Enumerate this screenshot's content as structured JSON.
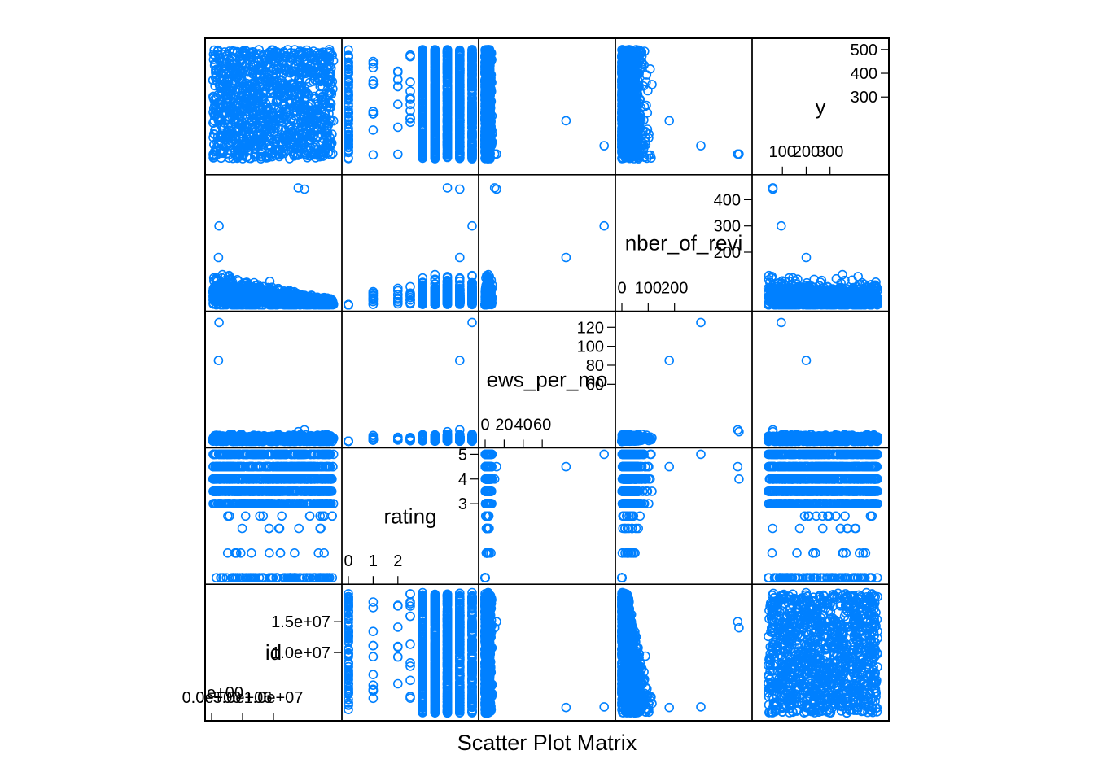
{
  "page": {
    "title": "Scatter Plot Matrix"
  },
  "chart_data": {
    "type": "scatter",
    "subtype": "scatter-plot-matrix",
    "title": "Scatter Plot Matrix",
    "point_color": "#0080ff",
    "marker": "open-circle",
    "grid": false,
    "variables": [
      {
        "name": "id",
        "range": [
          0,
          20000000
        ],
        "ticks_low": [
          "0.0e+00",
          "5.0e+06",
          "1.0e+07"
        ],
        "ticks_low_values": [
          0,
          5000000,
          10000000
        ],
        "ticks_high": [
          "1.0e+07",
          "1.5e+07"
        ],
        "ticks_high_values": [
          10000000,
          15000000
        ],
        "cut_label": "e+00"
      },
      {
        "name": "rating",
        "range": [
          0,
          5
        ],
        "ticks_low": [
          "0",
          "1",
          "2"
        ],
        "ticks_low_values": [
          0,
          1,
          2
        ],
        "ticks_high": [
          "3",
          "4",
          "5"
        ],
        "ticks_high_values": [
          3,
          4,
          5
        ]
      },
      {
        "name": "reviews_per_month",
        "display_name": "ews_per_mo",
        "range": [
          0,
          130
        ],
        "ticks_low": [
          "0",
          "20",
          "40",
          "60"
        ],
        "ticks_low_values": [
          0,
          20,
          40,
          60
        ],
        "ticks_high": [
          "60",
          "80",
          "100",
          "120"
        ],
        "ticks_high_values": [
          60,
          80,
          100,
          120
        ]
      },
      {
        "name": "number_of_reviews",
        "display_name": "nber_of_revi",
        "range": [
          0,
          470
        ],
        "ticks_low": [
          "0",
          "100",
          "200"
        ],
        "ticks_low_values": [
          0,
          100,
          200
        ],
        "ticks_high": [
          "200",
          "300",
          "400"
        ],
        "ticks_high_values": [
          200,
          300,
          400
        ]
      },
      {
        "name": "y",
        "range": [
          0,
          520
        ],
        "ticks_low": [
          "100",
          "200",
          "300"
        ],
        "ticks_low_values": [
          100,
          200,
          300
        ],
        "ticks_high": [
          "300",
          "400",
          "500"
        ],
        "ticks_high_values": [
          300,
          400,
          500
        ]
      }
    ],
    "pairs_note": "Each off-diagonal panel plots the column variable on x against the row variable on y (lattice splom layout, row 1 = y at top, row 5 = id at bottom)."
  }
}
